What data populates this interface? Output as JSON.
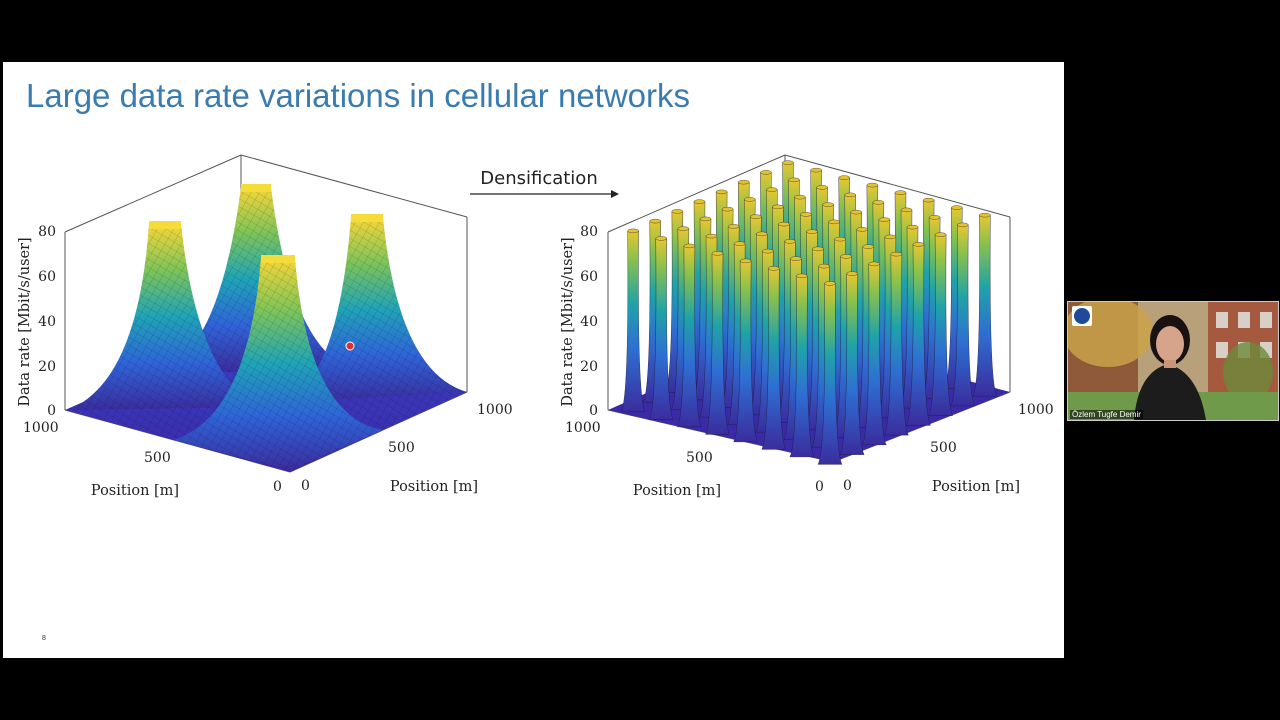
{
  "slide": {
    "title": "Large data rate variations in cellular networks",
    "page_number": "8",
    "arrow_label": "Densification"
  },
  "chart_data": [
    {
      "type": "surface",
      "title": "",
      "zlabel": "Data rate [Mbit/s/user]",
      "xlabel": "Position [m]",
      "ylabel": "Position [m]",
      "z_ticks": [
        "0",
        "20",
        "40",
        "60",
        "80"
      ],
      "x_ticks": [
        "1000",
        "500",
        "0"
      ],
      "y_ticks": [
        "0",
        "500",
        "1000"
      ],
      "zlim": [
        0,
        80
      ],
      "peaks": 4,
      "peak_value": 80,
      "colormap": "parula"
    },
    {
      "type": "surface",
      "title": "",
      "zlabel": "Data rate [Mbit/s/user]",
      "xlabel": "Position [m]",
      "ylabel": "Position [m]",
      "z_ticks": [
        "0",
        "20",
        "40",
        "60",
        "80"
      ],
      "x_ticks": [
        "1000",
        "500",
        "0"
      ],
      "y_ticks": [
        "0",
        "500",
        "1000"
      ],
      "zlim": [
        0,
        80
      ],
      "peaks": 64,
      "peak_value": 80,
      "colormap": "parula"
    }
  ],
  "webcam": {
    "participant_name": "Özlem Tugfe Demir"
  }
}
